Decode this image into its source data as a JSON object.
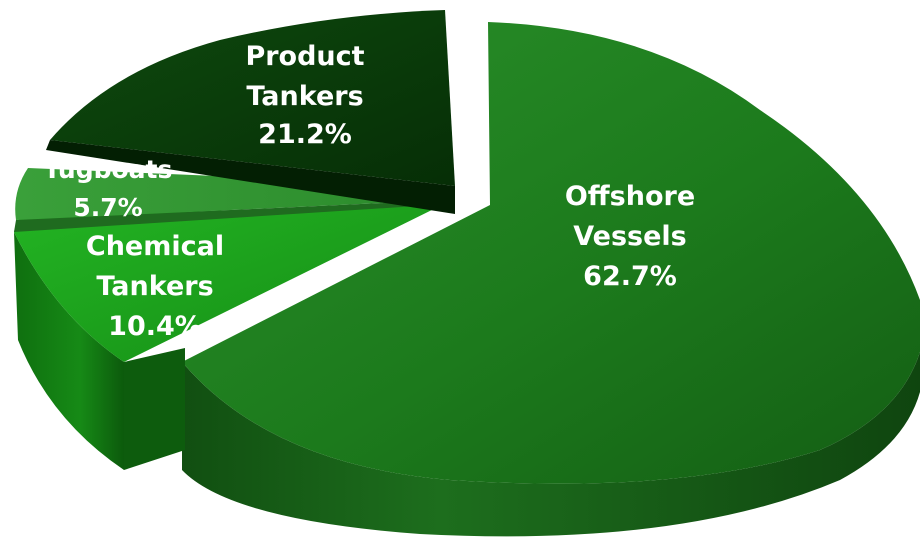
{
  "chart_data": {
    "type": "pie",
    "style": "3d-exploded",
    "series": [
      {
        "name": "Offshore Vessels",
        "value": 62.7,
        "label": "62.7%",
        "color": "#1e7d1e"
      },
      {
        "name": "Chemical Tankers",
        "value": 10.4,
        "label": "10.4%",
        "color": "#1a9c1a"
      },
      {
        "name": "Tugboats",
        "value": 5.7,
        "label": "5.7%",
        "color": "#2f8f2f"
      },
      {
        "name": "Product Tankers",
        "value": 21.2,
        "label": "21.2%",
        "color": "#0b3d0b"
      }
    ]
  },
  "labels": {
    "offshore": {
      "line1": "Offshore",
      "line2": "Vessels",
      "pct": "62.7%"
    },
    "chemical": {
      "line1": "Chemical",
      "line2": "Tankers",
      "pct": "10.4%"
    },
    "tugboats": {
      "line1": "Tugboats",
      "pct": "5.7%"
    },
    "product": {
      "line1": "Product",
      "line2": "Tankers",
      "pct": "21.2%"
    }
  }
}
